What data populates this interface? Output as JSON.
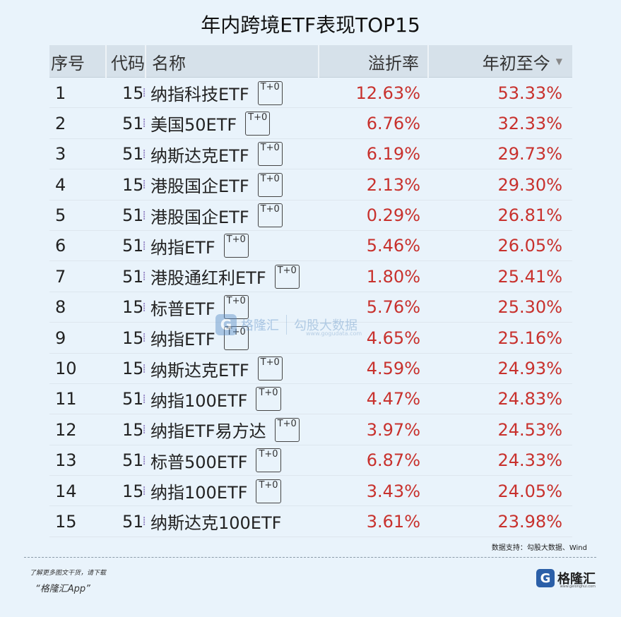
{
  "title": "年内跨境ETF表现TOP15",
  "table": {
    "headers": {
      "idx": "序号",
      "code": "代码",
      "name": "名称",
      "premium": "溢折率",
      "ytd": "年初至今"
    },
    "sort_indicator": "▼",
    "rows": [
      {
        "idx": "1",
        "code": "15",
        "name": "纳指科技ETF",
        "tag": "T+0",
        "premium": "12.63%",
        "ytd": "53.33%"
      },
      {
        "idx": "2",
        "code": "51",
        "name": "美国50ETF",
        "tag": "T+0",
        "premium": "6.76%",
        "ytd": "32.33%"
      },
      {
        "idx": "3",
        "code": "51",
        "name": "纳斯达克ETF",
        "tag": "T+0",
        "premium": "6.19%",
        "ytd": "29.73%"
      },
      {
        "idx": "4",
        "code": "15",
        "name": "港股国企ETF",
        "tag": "T+0",
        "premium": "2.13%",
        "ytd": "29.30%"
      },
      {
        "idx": "5",
        "code": "51",
        "name": "港股国企ETF",
        "tag": "T+0",
        "premium": "0.29%",
        "ytd": "26.81%"
      },
      {
        "idx": "6",
        "code": "51",
        "name": "纳指ETF",
        "tag": "T+0",
        "premium": "5.46%",
        "ytd": "26.05%"
      },
      {
        "idx": "7",
        "code": "51",
        "name": "港股通红利ETF",
        "tag": "T+0",
        "premium": "1.80%",
        "ytd": "25.41%"
      },
      {
        "idx": "8",
        "code": "15",
        "name": "标普ETF",
        "tag": "T+0",
        "premium": "5.76%",
        "ytd": "25.30%"
      },
      {
        "idx": "9",
        "code": "15",
        "name": "纳指ETF",
        "tag": "T+0",
        "premium": "4.65%",
        "ytd": "25.16%"
      },
      {
        "idx": "10",
        "code": "15",
        "name": "纳斯达克ETF",
        "tag": "T+0",
        "premium": "4.59%",
        "ytd": "24.93%"
      },
      {
        "idx": "11",
        "code": "51",
        "name": "纳指100ETF",
        "tag": "T+0",
        "premium": "4.47%",
        "ytd": "24.83%"
      },
      {
        "idx": "12",
        "code": "15",
        "name": "纳指ETF易方达",
        "tag": "T+0",
        "premium": "3.97%",
        "ytd": "24.53%"
      },
      {
        "idx": "13",
        "code": "51",
        "name": "标普500ETF",
        "tag": "T+0",
        "premium": "6.87%",
        "ytd": "24.33%"
      },
      {
        "idx": "14",
        "code": "15",
        "name": "纳指100ETF",
        "tag": "T+0",
        "premium": "3.43%",
        "ytd": "24.05%"
      },
      {
        "idx": "15",
        "code": "51",
        "name": "纳斯达克100ETF",
        "tag": "",
        "premium": "3.61%",
        "ytd": "23.98%"
      }
    ]
  },
  "watermark": {
    "logo": "G",
    "brand": "格隆汇",
    "secondary": "勾股大数据",
    "url": "www.gogudata.com"
  },
  "source": "数据支持：勾股大数据、Wind",
  "footer": {
    "line1": "了解更多图文干货，请下载",
    "line2": "“格隆汇App”",
    "brand_logo": "G",
    "brand_name": "格隆汇",
    "brand_url": "www.gelonghui.com"
  },
  "colors": {
    "positive": "#c8312d",
    "header_bg": "#d6e1ea",
    "page_bg": "#e9f3fb"
  }
}
